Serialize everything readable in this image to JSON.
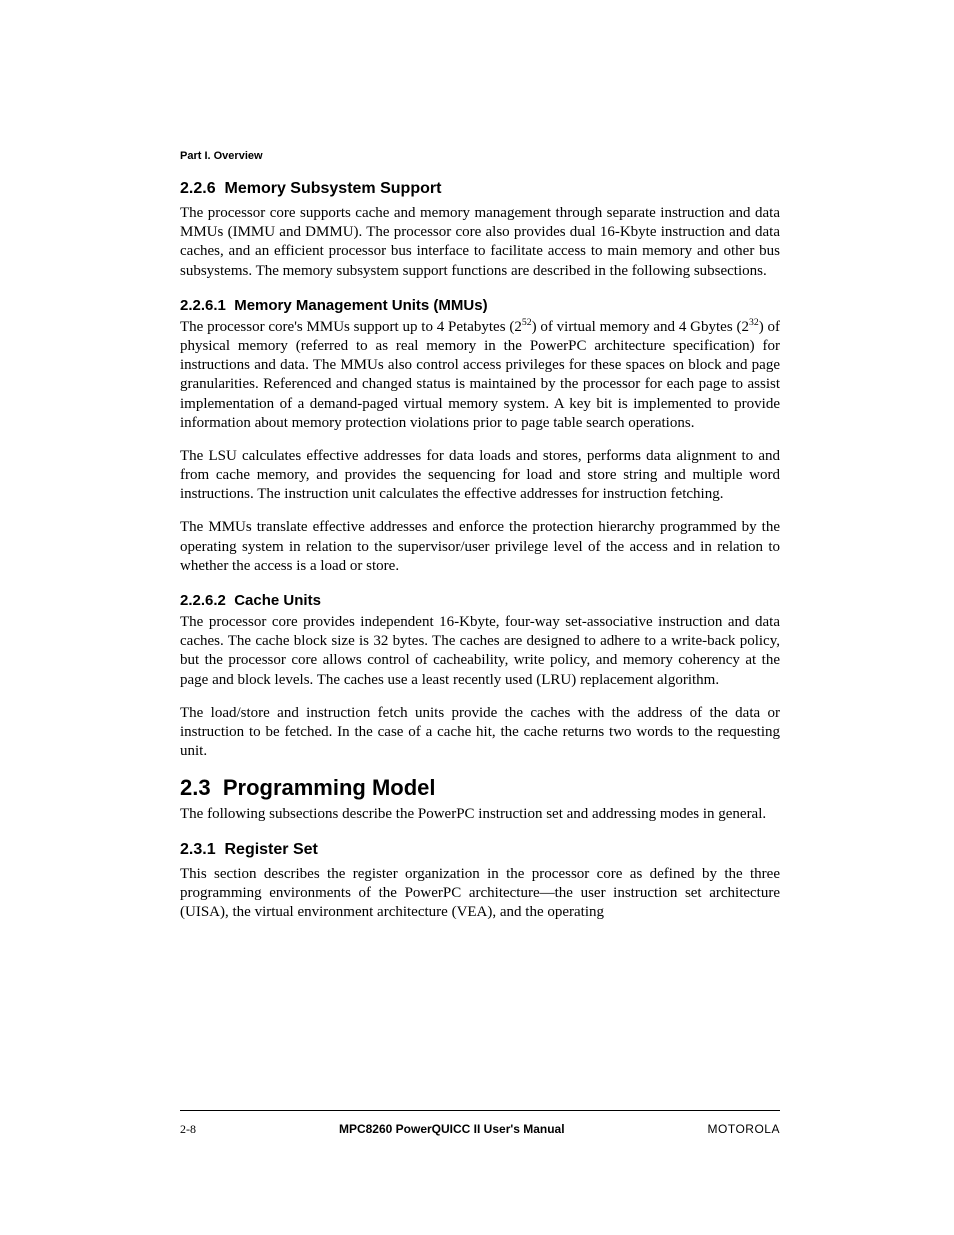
{
  "header": {
    "part_label": "Part I. Overview"
  },
  "sections": {
    "s226": {
      "num": "2.2.6",
      "title": "Memory Subsystem Support",
      "p1": "The processor core supports cache and memory management through separate instruction and data MMUs (IMMU and DMMU). The processor core also provides dual 16-Kbyte instruction and data caches, and an efficient processor bus interface to facilitate access to main memory and other bus subsystems. The memory subsystem support functions are described in the following subsections."
    },
    "s2261": {
      "num": "2.2.6.1",
      "title": "Memory Management Units (MMUs)",
      "p1a": "The processor core's MMUs support up to 4 Petabytes (2",
      "p1b": ") of virtual memory and 4 Gbytes (2",
      "p1c": ") of physical memory (referred to as real memory in the PowerPC architecture specification) for instructions and data. The MMUs also control access privileges for these spaces on block and page granularities. Referenced and changed status is maintained by the processor for each page to assist implementation of a demand-paged virtual memory system. A key bit is implemented to provide information about memory protection violations prior to page table search operations.",
      "sup1": "52",
      "sup2": "32",
      "p2": "The LSU calculates effective addresses for data loads and stores, performs data alignment to and from cache memory, and provides the sequencing for load and store string and multiple word instructions. The instruction unit calculates the effective addresses for instruction fetching.",
      "p3": "The MMUs translate effective addresses and enforce the protection hierarchy programmed by the operating system in relation to the supervisor/user privilege level of the access and in relation to whether the access is a load or store."
    },
    "s2262": {
      "num": "2.2.6.2",
      "title": "Cache Units",
      "p1": "The processor core provides independent 16-Kbyte, four-way set-associative instruction and data caches. The cache block size is 32 bytes. The caches are designed to adhere to a write-back policy, but the processor core allows control of cacheability, write policy, and memory coherency at the page and block levels. The caches use a least recently used (LRU) replacement algorithm.",
      "p2": "The load/store and instruction fetch units provide the caches with the address of the data or instruction to be fetched. In the case of a cache hit, the cache returns two words to the requesting unit."
    },
    "s23": {
      "num": "2.3",
      "title": "Programming Model",
      "p1": "The following subsections describe the PowerPC instruction set and addressing modes in general."
    },
    "s231": {
      "num": "2.3.1",
      "title": "Register Set",
      "p1": "This section describes the register organization in the processor core as defined by the three programming environments of the PowerPC architecture—the user instruction set architecture (UISA), the virtual environment architecture (VEA), and the operating"
    }
  },
  "footer": {
    "page_num": "2-8",
    "manual_title": "MPC8260 PowerQUICC II User's Manual",
    "brand": "MOTOROLA"
  }
}
